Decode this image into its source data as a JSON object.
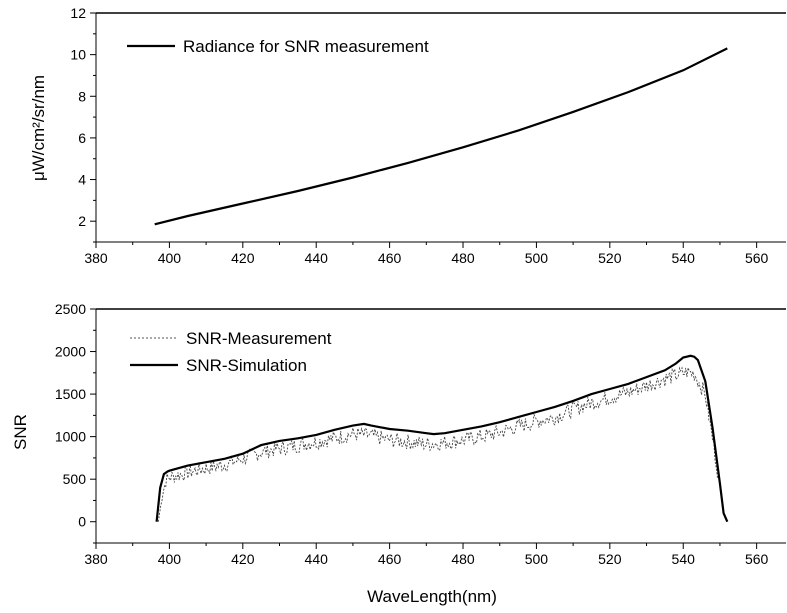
{
  "chart_data": [
    {
      "type": "line",
      "title": "",
      "xlabel": "",
      "ylabel": "μW/cm²/sr/nm",
      "xlim": [
        380,
        568
      ],
      "ylim": [
        1,
        12
      ],
      "x_ticks": [
        380,
        400,
        420,
        440,
        460,
        480,
        500,
        520,
        540,
        560
      ],
      "y_ticks": [
        2,
        4,
        6,
        8,
        10,
        12
      ],
      "legend_position": "top-left",
      "series": [
        {
          "name": "Radiance for SNR measurement",
          "style": "solid",
          "x": [
            396,
            405,
            420,
            435,
            450,
            465,
            480,
            495,
            510,
            525,
            540,
            552
          ],
          "y": [
            1.85,
            2.25,
            2.85,
            3.45,
            4.1,
            4.8,
            5.55,
            6.35,
            7.25,
            8.2,
            9.25,
            10.3
          ]
        }
      ]
    },
    {
      "type": "line",
      "title": "",
      "xlabel": "WaveLength(nm)",
      "ylabel": "SNR",
      "xlim": [
        380,
        568
      ],
      "ylim": [
        -250,
        2500
      ],
      "x_ticks": [
        380,
        400,
        420,
        440,
        460,
        480,
        500,
        520,
        540,
        560
      ],
      "y_ticks": [
        0,
        500,
        1000,
        1500,
        2000,
        2500
      ],
      "legend_position": "top-left",
      "series": [
        {
          "name": "SNR-Measurement",
          "style": "dotted",
          "x": [
            397,
            398,
            399,
            400,
            405,
            410,
            415,
            420,
            425,
            430,
            435,
            440,
            445,
            450,
            455,
            460,
            465,
            470,
            475,
            480,
            485,
            490,
            495,
            500,
            505,
            510,
            515,
            520,
            525,
            530,
            535,
            538,
            541,
            543,
            546,
            549,
            551,
            552
          ],
          "y": [
            0,
            300,
            480,
            520,
            580,
            630,
            670,
            740,
            820,
            860,
            900,
            940,
            980,
            1030,
            1010,
            960,
            940,
            910,
            930,
            960,
            1000,
            1050,
            1120,
            1180,
            1230,
            1320,
            1400,
            1460,
            1520,
            1600,
            1680,
            1720,
            1760,
            1740,
            1500,
            700,
            100,
            0
          ]
        },
        {
          "name": "SNR-Simulation",
          "style": "solid",
          "x": [
            396.5,
            397.5,
            398.5,
            399.5,
            400,
            405,
            410,
            415,
            420,
            425,
            430,
            435,
            440,
            445,
            450,
            453,
            455,
            460,
            465,
            470,
            472,
            475,
            480,
            485,
            490,
            495,
            500,
            505,
            510,
            515,
            520,
            525,
            530,
            535,
            538,
            540,
            542,
            543,
            544,
            546,
            548,
            550,
            551,
            552
          ],
          "y": [
            0,
            400,
            560,
            590,
            600,
            660,
            700,
            740,
            800,
            900,
            950,
            980,
            1020,
            1080,
            1130,
            1150,
            1130,
            1090,
            1070,
            1040,
            1030,
            1040,
            1080,
            1120,
            1170,
            1230,
            1290,
            1350,
            1420,
            1500,
            1560,
            1620,
            1700,
            1780,
            1860,
            1930,
            1950,
            1940,
            1900,
            1650,
            1100,
            450,
            100,
            0
          ]
        }
      ]
    }
  ]
}
